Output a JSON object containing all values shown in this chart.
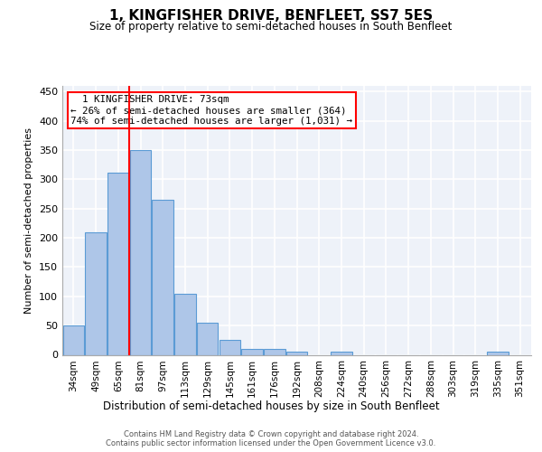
{
  "title": "1, KINGFISHER DRIVE, BENFLEET, SS7 5ES",
  "subtitle": "Size of property relative to semi-detached houses in South Benfleet",
  "xlabel": "Distribution of semi-detached houses by size in South Benfleet",
  "ylabel": "Number of semi-detached properties",
  "footer_line1": "Contains HM Land Registry data © Crown copyright and database right 2024.",
  "footer_line2": "Contains public sector information licensed under the Open Government Licence v3.0.",
  "bar_labels": [
    "34sqm",
    "49sqm",
    "65sqm",
    "81sqm",
    "97sqm",
    "113sqm",
    "129sqm",
    "145sqm",
    "161sqm",
    "176sqm",
    "192sqm",
    "208sqm",
    "224sqm",
    "240sqm",
    "256sqm",
    "272sqm",
    "288sqm",
    "303sqm",
    "319sqm",
    "335sqm",
    "351sqm"
  ],
  "bar_values": [
    50,
    210,
    312,
    350,
    265,
    104,
    55,
    26,
    10,
    10,
    5,
    0,
    5,
    0,
    0,
    0,
    0,
    0,
    0,
    5,
    0
  ],
  "bar_color": "#aec6e8",
  "bar_edgecolor": "#5b9bd5",
  "ylim": [
    0,
    460
  ],
  "yticks": [
    0,
    50,
    100,
    150,
    200,
    250,
    300,
    350,
    400,
    450
  ],
  "red_line_x": 2.5,
  "annotation_text": "  1 KINGFISHER DRIVE: 73sqm\n← 26% of semi-detached houses are smaller (364)\n74% of semi-detached houses are larger (1,031) →",
  "bg_color": "#eef2f9",
  "grid_color": "#ffffff"
}
